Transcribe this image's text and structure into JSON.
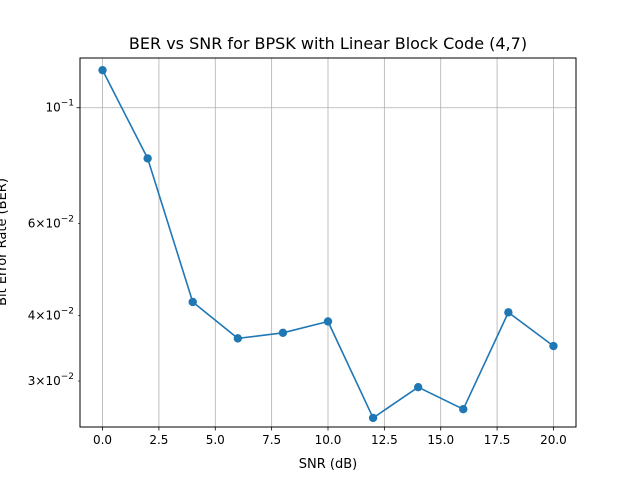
{
  "chart_data": {
    "type": "line",
    "title": "BER vs SNR for BPSK with Linear Block Code (4,7)",
    "xlabel": "SNR (dB)",
    "ylabel": "Bit Error Rate (BER)",
    "yscale": "log",
    "grid": true,
    "xlim": [
      -1.0,
      21.0
    ],
    "ylim": [
      0.0245,
      0.1245
    ],
    "x_ticks": [
      {
        "value": 0.0,
        "label": "0.0"
      },
      {
        "value": 2.5,
        "label": "2.5"
      },
      {
        "value": 5.0,
        "label": "5.0"
      },
      {
        "value": 7.5,
        "label": "7.5"
      },
      {
        "value": 10.0,
        "label": "10.0"
      },
      {
        "value": 12.5,
        "label": "12.5"
      },
      {
        "value": 15.0,
        "label": "15.0"
      },
      {
        "value": 17.5,
        "label": "17.5"
      },
      {
        "value": 20.0,
        "label": "20.0"
      }
    ],
    "y_ticks": [
      {
        "value": 0.03,
        "mantissa": "3",
        "base": "10",
        "exponent": "−2"
      },
      {
        "value": 0.04,
        "mantissa": "4",
        "base": "10",
        "exponent": "−2"
      },
      {
        "value": 0.06,
        "mantissa": "6",
        "base": "10",
        "exponent": "−2"
      },
      {
        "value": 0.1,
        "mantissa": "",
        "base": "10",
        "exponent": "−1"
      }
    ],
    "series": [
      {
        "color": "#1f77b4",
        "marker": "circle",
        "x": [
          0,
          2,
          4,
          6,
          8,
          10,
          12,
          14,
          16,
          18,
          20
        ],
        "y": [
          0.118,
          0.08,
          0.0425,
          0.0362,
          0.0371,
          0.039,
          0.0255,
          0.0292,
          0.0265,
          0.0406,
          0.035
        ]
      }
    ]
  }
}
